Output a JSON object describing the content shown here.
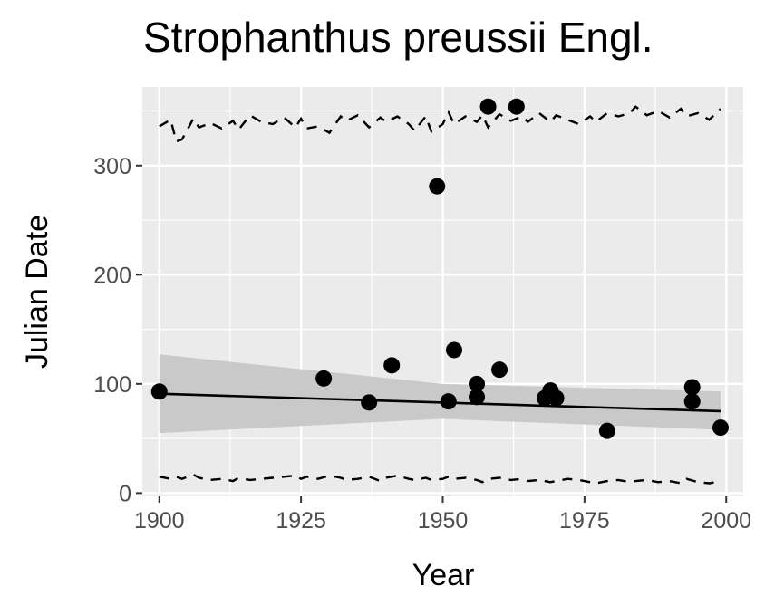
{
  "chart_data": {
    "type": "scatter",
    "title": "Strophanthus preussii Engl.",
    "xlabel": "Year",
    "ylabel": "Julian Date",
    "xlim": [
      1897,
      2003
    ],
    "ylim": [
      -3,
      372
    ],
    "x_ticks": [
      1900,
      1925,
      1950,
      1975,
      2000
    ],
    "y_ticks": [
      0,
      100,
      200,
      300
    ],
    "grid": true,
    "panel_background": "#ebebeb",
    "points": [
      {
        "x": 1900,
        "y": 93
      },
      {
        "x": 1929,
        "y": 105
      },
      {
        "x": 1937,
        "y": 83
      },
      {
        "x": 1941,
        "y": 117
      },
      {
        "x": 1949,
        "y": 281
      },
      {
        "x": 1951,
        "y": 84
      },
      {
        "x": 1952,
        "y": 131
      },
      {
        "x": 1956,
        "y": 100
      },
      {
        "x": 1956,
        "y": 88
      },
      {
        "x": 1958,
        "y": 354
      },
      {
        "x": 1960,
        "y": 113
      },
      {
        "x": 1963,
        "y": 354
      },
      {
        "x": 1968,
        "y": 87
      },
      {
        "x": 1969,
        "y": 94
      },
      {
        "x": 1970,
        "y": 87
      },
      {
        "x": 1979,
        "y": 57
      },
      {
        "x": 1994,
        "y": 97
      },
      {
        "x": 1994,
        "y": 84
      },
      {
        "x": 1999,
        "y": 60
      }
    ],
    "trend_line": {
      "x": [
        1900,
        1999
      ],
      "y": [
        91,
        75
      ]
    },
    "confidence_band": {
      "x": [
        1900,
        1950,
        1999
      ],
      "upper": [
        127,
        100,
        93
      ],
      "lower": [
        55,
        68,
        58
      ]
    },
    "upper_dashed_series": {
      "x": [
        1900,
        1902,
        1903,
        1904,
        1906,
        1907,
        1909,
        1911,
        1913,
        1914,
        1916,
        1918,
        1920,
        1922,
        1924,
        1925,
        1926,
        1928,
        1930,
        1932,
        1933,
        1935,
        1937,
        1939,
        1940,
        1942,
        1944,
        1945,
        1947,
        1948,
        1950,
        1951,
        1952,
        1954,
        1956,
        1957,
        1958,
        1960,
        1962,
        1964,
        1965,
        1967,
        1969,
        1970,
        1972,
        1974,
        1976,
        1977,
        1979,
        1981,
        1983,
        1984,
        1986,
        1988,
        1990,
        1992,
        1993,
        1995,
        1997,
        1999
      ],
      "y": [
        336,
        342,
        322,
        324,
        343,
        335,
        339,
        334,
        341,
        333,
        346,
        340,
        338,
        344,
        335,
        343,
        334,
        336,
        330,
        345,
        341,
        346,
        335,
        344,
        340,
        345,
        338,
        332,
        345,
        331,
        338,
        349,
        338,
        345,
        340,
        346,
        335,
        347,
        341,
        345,
        340,
        348,
        340,
        346,
        342,
        338,
        345,
        340,
        348,
        345,
        348,
        354,
        346,
        350,
        344,
        352,
        345,
        348,
        342,
        352
      ]
    },
    "lower_dashed_series": {
      "x": [
        1900,
        1902,
        1903,
        1904,
        1906,
        1907,
        1909,
        1911,
        1913,
        1914,
        1916,
        1918,
        1920,
        1922,
        1924,
        1925,
        1926,
        1928,
        1930,
        1932,
        1933,
        1935,
        1937,
        1939,
        1940,
        1942,
        1944,
        1945,
        1947,
        1948,
        1950,
        1951,
        1952,
        1954,
        1956,
        1957,
        1958,
        1960,
        1962,
        1964,
        1965,
        1967,
        1969,
        1970,
        1972,
        1974,
        1976,
        1977,
        1979,
        1981,
        1983,
        1984,
        1986,
        1988,
        1990,
        1992,
        1993,
        1995,
        1997,
        1999
      ],
      "y": [
        15,
        13,
        15,
        13,
        17,
        14,
        12,
        13,
        11,
        14,
        12,
        13,
        14,
        15,
        16,
        13,
        15,
        13,
        16,
        14,
        12,
        13,
        15,
        11,
        14,
        16,
        13,
        12,
        14,
        12,
        13,
        15,
        13,
        14,
        12,
        10,
        13,
        14,
        12,
        13,
        11,
        12,
        10,
        11,
        13,
        12,
        10,
        9,
        11,
        12,
        10,
        11,
        12,
        10,
        11,
        9,
        13,
        10,
        9,
        11
      ]
    }
  }
}
